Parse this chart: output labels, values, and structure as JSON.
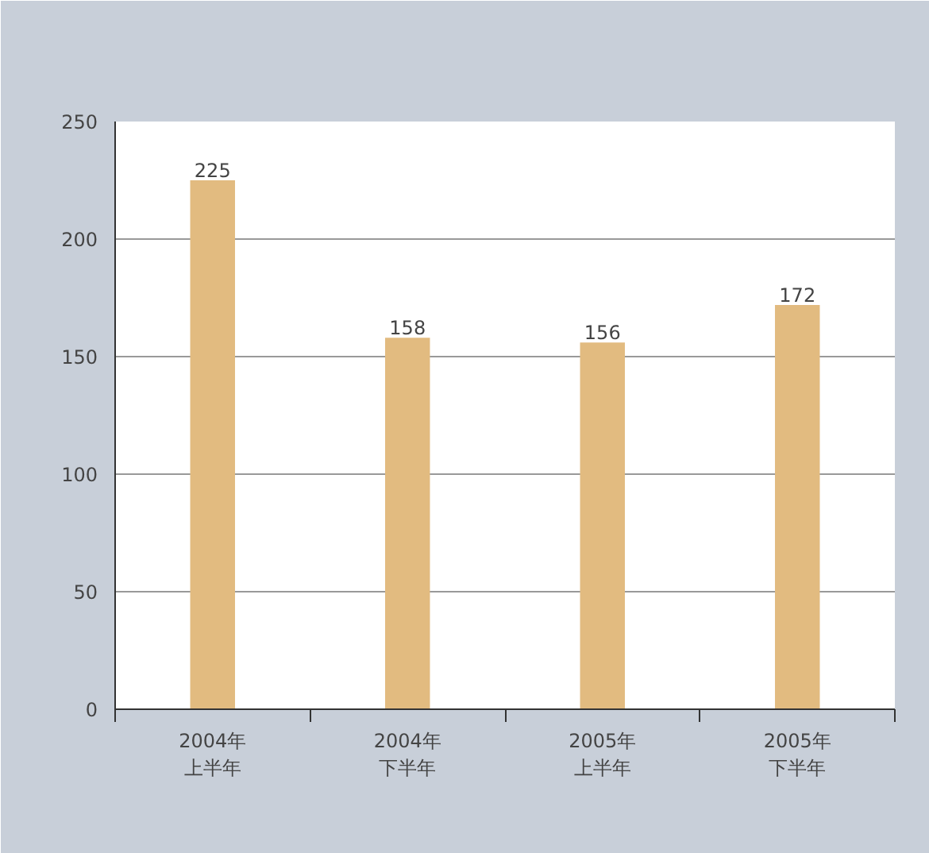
{
  "chart_data": {
    "type": "bar",
    "categories": [
      "2004年上半年",
      "2004年下半年",
      "2005年上半年",
      "2005年下半年"
    ],
    "values": [
      225,
      158,
      156,
      172
    ],
    "color": "#e2bb80",
    "ylim": [
      0,
      250
    ],
    "yticks": [
      0,
      50,
      100,
      150,
      200,
      250
    ],
    "grid": "y",
    "data_labels": true
  }
}
